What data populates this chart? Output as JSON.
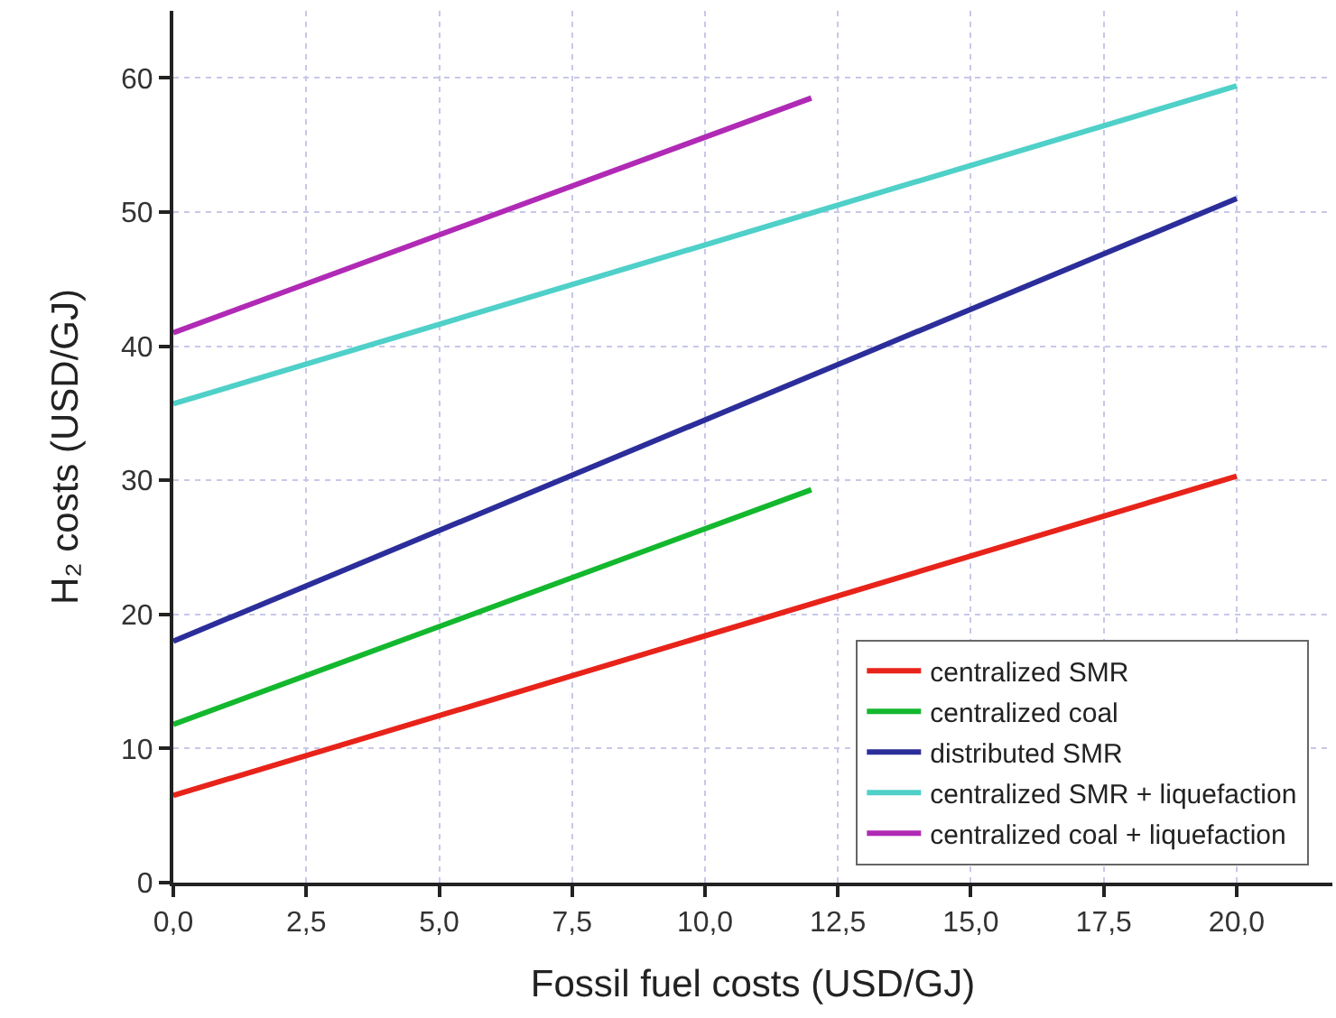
{
  "chart_data": {
    "type": "line",
    "xlabel": "Fossil fuel costs (USD/GJ)",
    "ylabel": "H₂ costs (USD/GJ)",
    "xlim": [
      0,
      21.8
    ],
    "ylim": [
      0,
      65
    ],
    "xticks": [
      {
        "value": 0,
        "label": "0,0"
      },
      {
        "value": 2.5,
        "label": "2,5"
      },
      {
        "value": 5,
        "label": "5,0"
      },
      {
        "value": 7.5,
        "label": "7,5"
      },
      {
        "value": 10,
        "label": "10,0"
      },
      {
        "value": 12.5,
        "label": "12,5"
      },
      {
        "value": 15,
        "label": "15,0"
      },
      {
        "value": 17.5,
        "label": "17,5"
      },
      {
        "value": 20,
        "label": "20,0"
      }
    ],
    "yticks": [
      0,
      10,
      20,
      30,
      40,
      50,
      60
    ],
    "grid": true,
    "legend": "bottom right",
    "line_style": "solid",
    "marker": "none",
    "series": [
      {
        "name": "centralized SMR",
        "color": "#e8231a",
        "x": [
          0,
          20
        ],
        "values": [
          6.5,
          30.3
        ]
      },
      {
        "name": "centralized coal",
        "color": "#13b82e",
        "x": [
          0,
          12
        ],
        "values": [
          11.8,
          29.3
        ]
      },
      {
        "name": "distributed SMR",
        "color": "#2b2e9a",
        "x": [
          0,
          20
        ],
        "values": [
          18,
          51
        ]
      },
      {
        "name": "centralized SMR + liquefaction",
        "color": "#4fd0c8",
        "x": [
          0,
          20
        ],
        "values": [
          35.7,
          59.4
        ]
      },
      {
        "name": "centralized coal + liquefaction",
        "color": "#b02ab5",
        "x": [
          0,
          12
        ],
        "values": [
          41,
          58.5
        ]
      }
    ]
  }
}
